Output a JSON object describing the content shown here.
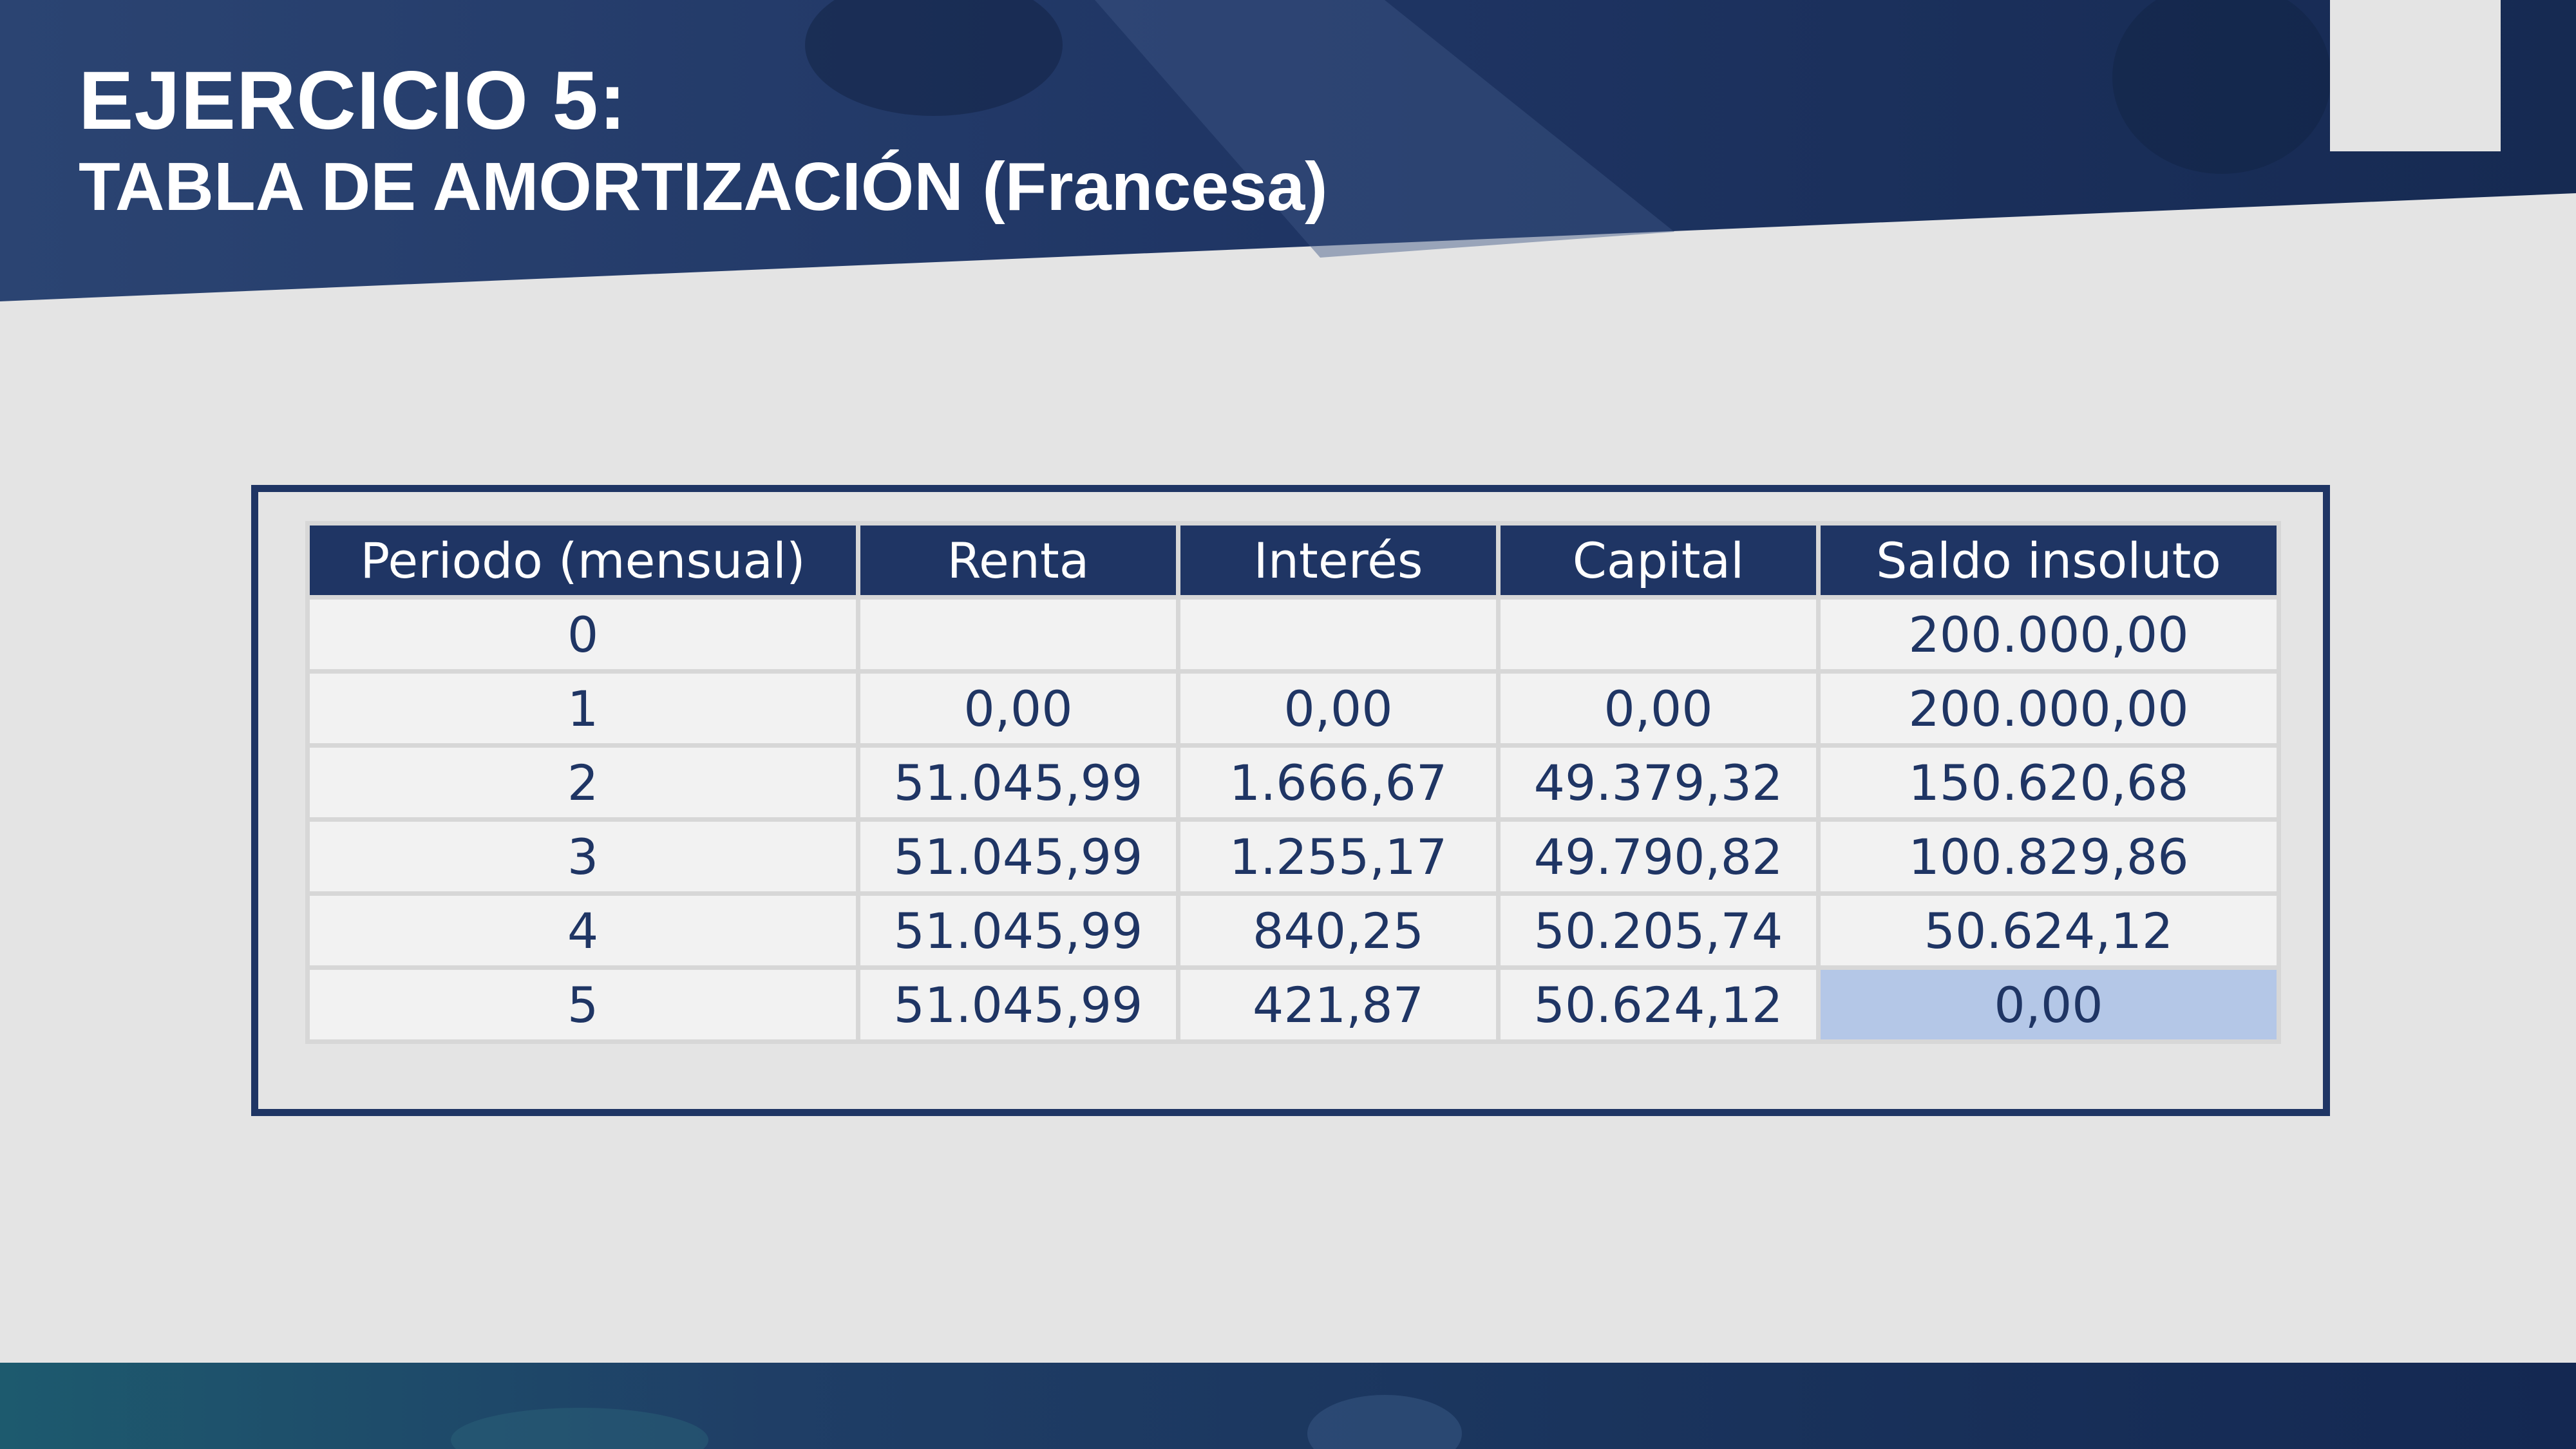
{
  "header": {
    "title": "EJERCICIO 5:",
    "subtitle": "TABLA DE AMORTIZACIÓN (Francesa)"
  },
  "colors": {
    "banner": "#1f3564",
    "header_row": "#1f3564",
    "cell_text": "#1f3564",
    "cell_bg": "#f2f2f2",
    "highlight": "#b4c7e7",
    "background": "#e4e4e4"
  },
  "table": {
    "columns": [
      "Periodo (mensual)",
      "Renta",
      "Interés",
      "Capital",
      "Saldo insoluto"
    ],
    "rows": [
      [
        "0",
        "",
        "",
        "",
        "200.000,00"
      ],
      [
        "1",
        "0,00",
        "0,00",
        "0,00",
        "200.000,00"
      ],
      [
        "2",
        "51.045,99",
        "1.666,67",
        "49.379,32",
        "150.620,68"
      ],
      [
        "3",
        "51.045,99",
        "1.255,17",
        "49.790,82",
        "100.829,86"
      ],
      [
        "4",
        "51.045,99",
        "840,25",
        "50.205,74",
        "50.624,12"
      ],
      [
        "5",
        "51.045,99",
        "421,87",
        "50.624,12",
        "0,00"
      ]
    ]
  }
}
